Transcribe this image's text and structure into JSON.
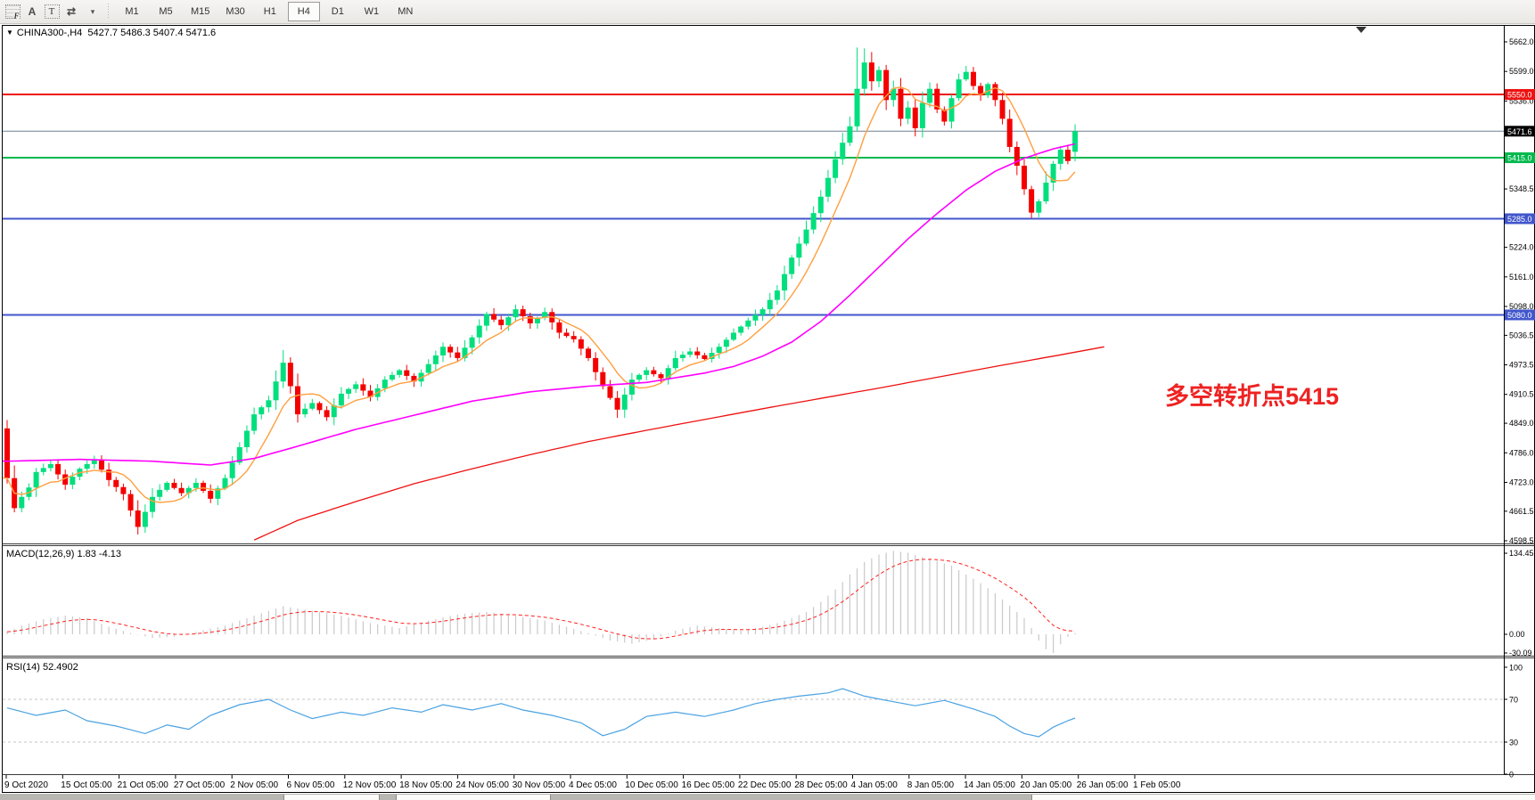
{
  "toolbar": {
    "icons": [
      {
        "name": "grid-f-icon",
        "label": "F"
      },
      {
        "name": "font-icon",
        "label": "A"
      },
      {
        "name": "text-label-icon",
        "label": "T"
      },
      {
        "name": "cycle-charts-icon",
        "label": "⇄"
      },
      {
        "name": "dropdown-caret-icon",
        "label": "▾"
      }
    ],
    "timeframes": [
      {
        "label": "M1",
        "active": false
      },
      {
        "label": "M5",
        "active": false
      },
      {
        "label": "M15",
        "active": false
      },
      {
        "label": "M30",
        "active": false
      },
      {
        "label": "H1",
        "active": false
      },
      {
        "label": "H4",
        "active": true
      },
      {
        "label": "D1",
        "active": false
      },
      {
        "label": "W1",
        "active": false
      },
      {
        "label": "MN",
        "active": false
      }
    ]
  },
  "chart": {
    "dropdown_icon": "▼",
    "symbol_tf": "CHINA300-,H4",
    "ohlc_text": "5427.7 5486.3 5407.4 5471.6",
    "annotation_text": "多空转折点5415"
  },
  "macd_pane": {
    "label": "MACD(12,26,9) 1.83 -4.13"
  },
  "rsi_pane": {
    "label": "RSI(14) 52.4902"
  },
  "chart_data": {
    "type": "candlestick",
    "symbol": "CHINA300-",
    "timeframe": "H4",
    "last_open": 5427.7,
    "last_high": 5486.3,
    "last_low": 5407.4,
    "last_close": 5471.6,
    "price_axis": {
      "max": 5662.0,
      "min": 4598.5
    },
    "y_ticks": [
      5662.0,
      5599.0,
      5536.0,
      5348.5,
      5224.0,
      5161.0,
      5098.0,
      5036.5,
      4973.5,
      4910.5,
      4849.0,
      4786.0,
      4723.0,
      4661.5,
      4598.5
    ],
    "price_lines": [
      {
        "label": "5550.0",
        "price": 5550.0,
        "color": "#ee1111",
        "badge": "#ee1111",
        "width": 2
      },
      {
        "label": "5471.6",
        "price": 5471.6,
        "color": "#708090",
        "badge": "#000000",
        "width": 1
      },
      {
        "label": "5415.0",
        "price": 5415.0,
        "color": "#00b84c",
        "badge": "#00b84c",
        "width": 2
      },
      {
        "label": "5285.0",
        "price": 5285.0,
        "color": "#4156cc",
        "badge": "#4156cc",
        "width": 2
      },
      {
        "label": "5080.0",
        "price": 5080.0,
        "color": "#4156cc",
        "badge": "#4156cc",
        "width": 2
      }
    ],
    "x_labels": [
      "9 Oct 2020",
      "15 Oct 05:00",
      "21 Oct 05:00",
      "27 Oct 05:00",
      "2 Nov 05:00",
      "6 Nov 05:00",
      "12 Nov 05:00",
      "18 Nov 05:00",
      "24 Nov 05:00",
      "30 Nov 05:00",
      "4 Dec 05:00",
      "10 Dec 05:00",
      "16 Dec 05:00",
      "22 Dec 05:00",
      "28 Dec 05:00",
      "4 Jan 05:00",
      "8 Jan 05:00",
      "14 Jan 05:00",
      "20 Jan 05:00",
      "26 Jan 05:00",
      "1 Feb 05:00"
    ],
    "candles": {
      "count": 148,
      "first_open": 4838,
      "up_color": "#00df7d",
      "down_color": "#f40000",
      "close_keyframes": [
        [
          0,
          4732
        ],
        [
          1,
          4668
        ],
        [
          2,
          4692
        ],
        [
          3,
          4712
        ],
        [
          4,
          4745
        ],
        [
          6,
          4762
        ],
        [
          8,
          4718
        ],
        [
          10,
          4752
        ],
        [
          12,
          4772
        ],
        [
          14,
          4728
        ],
        [
          16,
          4698
        ],
        [
          18,
          4628
        ],
        [
          20,
          4692
        ],
        [
          22,
          4722
        ],
        [
          24,
          4700
        ],
        [
          26,
          4722
        ],
        [
          28,
          4688
        ],
        [
          30,
          4732
        ],
        [
          32,
          4798
        ],
        [
          34,
          4868
        ],
        [
          36,
          4898
        ],
        [
          38,
          4978
        ],
        [
          39,
          4928
        ],
        [
          40,
          4868
        ],
        [
          42,
          4892
        ],
        [
          44,
          4862
        ],
        [
          46,
          4912
        ],
        [
          48,
          4932
        ],
        [
          50,
          4905
        ],
        [
          52,
          4942
        ],
        [
          54,
          4962
        ],
        [
          56,
          4938
        ],
        [
          58,
          4975
        ],
        [
          60,
          5012
        ],
        [
          62,
          4988
        ],
        [
          64,
          5032
        ],
        [
          66,
          5082
        ],
        [
          68,
          5058
        ],
        [
          70,
          5092
        ],
        [
          72,
          5062
        ],
        [
          74,
          5086
        ],
        [
          76,
          5042
        ],
        [
          78,
          5028
        ],
        [
          80,
          4988
        ],
        [
          82,
          4928
        ],
        [
          84,
          4878
        ],
        [
          86,
          4942
        ],
        [
          88,
          4962
        ],
        [
          90,
          4945
        ],
        [
          92,
          4988
        ],
        [
          94,
          5002
        ],
        [
          96,
          4986
        ],
        [
          98,
          5012
        ],
        [
          100,
          5042
        ],
        [
          102,
          5068
        ],
        [
          104,
          5092
        ],
        [
          106,
          5132
        ],
        [
          108,
          5202
        ],
        [
          110,
          5262
        ],
        [
          112,
          5332
        ],
        [
          114,
          5412
        ],
        [
          116,
          5482
        ],
        [
          117,
          5562
        ],
        [
          118,
          5618
        ],
        [
          119,
          5578
        ],
        [
          120,
          5602
        ],
        [
          121,
          5538
        ],
        [
          122,
          5562
        ],
        [
          123,
          5498
        ],
        [
          124,
          5522
        ],
        [
          125,
          5478
        ],
        [
          126,
          5532
        ],
        [
          127,
          5562
        ],
        [
          128,
          5518
        ],
        [
          129,
          5492
        ],
        [
          130,
          5542
        ],
        [
          131,
          5582
        ],
        [
          132,
          5598
        ],
        [
          133,
          5568
        ],
        [
          134,
          5548
        ],
        [
          135,
          5572
        ],
        [
          136,
          5538
        ],
        [
          137,
          5498
        ],
        [
          138,
          5438
        ],
        [
          139,
          5398
        ],
        [
          140,
          5348
        ],
        [
          141,
          5298
        ],
        [
          142,
          5322
        ],
        [
          143,
          5362
        ],
        [
          144,
          5402
        ],
        [
          145,
          5432
        ],
        [
          146,
          5408
        ],
        [
          147,
          5471.6
        ]
      ],
      "overrides": {
        "18": {
          "low": 4612
        },
        "38": {
          "high": 5005
        },
        "117": {
          "high": 5650
        },
        "118": {
          "high": 5648
        },
        "141": {
          "low": 5286
        },
        "147": {
          "open": 5427.7,
          "high": 5486.3,
          "low": 5407.4,
          "close": 5471.6
        }
      }
    },
    "ma_fast": {
      "color": "#ff9f40",
      "period": 7
    },
    "ma_mid": {
      "color": "#ff00ff",
      "keyframes": [
        [
          0,
          4768
        ],
        [
          10,
          4772
        ],
        [
          20,
          4768
        ],
        [
          28,
          4760
        ],
        [
          34,
          4774
        ],
        [
          40,
          4800
        ],
        [
          48,
          4836
        ],
        [
          56,
          4866
        ],
        [
          64,
          4896
        ],
        [
          72,
          4916
        ],
        [
          80,
          4928
        ],
        [
          88,
          4936
        ],
        [
          96,
          4956
        ],
        [
          100,
          4970
        ],
        [
          104,
          4992
        ],
        [
          108,
          5022
        ],
        [
          112,
          5066
        ],
        [
          116,
          5122
        ],
        [
          120,
          5182
        ],
        [
          124,
          5242
        ],
        [
          128,
          5296
        ],
        [
          132,
          5346
        ],
        [
          136,
          5386
        ],
        [
          140,
          5414
        ],
        [
          144,
          5434
        ],
        [
          148,
          5448
        ]
      ]
    },
    "ma_slow": {
      "color": "#ee1111",
      "keyframes": [
        [
          34,
          4600
        ],
        [
          40,
          4642
        ],
        [
          48,
          4682
        ],
        [
          56,
          4720
        ],
        [
          64,
          4752
        ],
        [
          72,
          4782
        ],
        [
          80,
          4810
        ],
        [
          88,
          4834
        ],
        [
          96,
          4857
        ],
        [
          104,
          4880
        ],
        [
          112,
          4902
        ],
        [
          120,
          4924
        ],
        [
          128,
          4947
        ],
        [
          136,
          4970
        ],
        [
          144,
          4992
        ],
        [
          151,
          5012
        ]
      ]
    },
    "macd": {
      "value": 1.83,
      "signal": -4.13,
      "axis_labels": [
        {
          "text": "134.45",
          "value": 134.45
        },
        {
          "text": "0.00",
          "value": 0
        },
        {
          "text": "-30.09",
          "value": -30.09
        }
      ],
      "hist_color": "#c9c9c9",
      "signal_color": "#ff2020",
      "keyframes": [
        [
          0,
          4
        ],
        [
          2,
          14
        ],
        [
          5,
          24
        ],
        [
          8,
          30
        ],
        [
          11,
          26
        ],
        [
          14,
          12
        ],
        [
          17,
          2
        ],
        [
          20,
          -6
        ],
        [
          23,
          -4
        ],
        [
          26,
          4
        ],
        [
          30,
          14
        ],
        [
          34,
          30
        ],
        [
          38,
          45
        ],
        [
          42,
          38
        ],
        [
          46,
          30
        ],
        [
          50,
          18
        ],
        [
          54,
          10
        ],
        [
          58,
          22
        ],
        [
          62,
          32
        ],
        [
          66,
          36
        ],
        [
          70,
          30
        ],
        [
          74,
          22
        ],
        [
          77,
          12
        ],
        [
          80,
          2
        ],
        [
          83,
          -10
        ],
        [
          86,
          -15
        ],
        [
          89,
          -8
        ],
        [
          92,
          6
        ],
        [
          95,
          14
        ],
        [
          98,
          10
        ],
        [
          101,
          6
        ],
        [
          104,
          12
        ],
        [
          106,
          18
        ],
        [
          108,
          26
        ],
        [
          110,
          36
        ],
        [
          112,
          52
        ],
        [
          114,
          72
        ],
        [
          116,
          96
        ],
        [
          118,
          116
        ],
        [
          120,
          128
        ],
        [
          122,
          134
        ],
        [
          124,
          131
        ],
        [
          126,
          124
        ],
        [
          128,
          118
        ],
        [
          130,
          110
        ],
        [
          132,
          96
        ],
        [
          134,
          82
        ],
        [
          136,
          66
        ],
        [
          138,
          46
        ],
        [
          140,
          26
        ],
        [
          141,
          10
        ],
        [
          142,
          -10
        ],
        [
          143,
          -24
        ],
        [
          144,
          -30
        ],
        [
          145,
          -16
        ],
        [
          146,
          -4
        ],
        [
          147,
          1.83
        ]
      ]
    },
    "rsi": {
      "value": 52.4902,
      "color": "#4aa2e2",
      "axis_labels": [
        {
          "text": "100",
          "value": 100
        },
        {
          "text": "70",
          "value": 70
        },
        {
          "text": "30",
          "value": 30
        },
        {
          "text": "0",
          "value": 0
        }
      ],
      "dashed_levels": [
        70,
        30
      ],
      "keyframes": [
        [
          0,
          62
        ],
        [
          4,
          55
        ],
        [
          8,
          60
        ],
        [
          11,
          50
        ],
        [
          15,
          45
        ],
        [
          19,
          38
        ],
        [
          22,
          46
        ],
        [
          25,
          42
        ],
        [
          28,
          55
        ],
        [
          32,
          65
        ],
        [
          36,
          70
        ],
        [
          39,
          60
        ],
        [
          42,
          52
        ],
        [
          46,
          58
        ],
        [
          49,
          55
        ],
        [
          53,
          62
        ],
        [
          57,
          58
        ],
        [
          60,
          65
        ],
        [
          64,
          60
        ],
        [
          68,
          66
        ],
        [
          71,
          60
        ],
        [
          75,
          55
        ],
        [
          79,
          48
        ],
        [
          82,
          36
        ],
        [
          85,
          42
        ],
        [
          88,
          54
        ],
        [
          92,
          58
        ],
        [
          96,
          54
        ],
        [
          100,
          60
        ],
        [
          103,
          66
        ],
        [
          106,
          70
        ],
        [
          109,
          73
        ],
        [
          113,
          76
        ],
        [
          115,
          80
        ],
        [
          118,
          73
        ],
        [
          121,
          69
        ],
        [
          125,
          64
        ],
        [
          129,
          69
        ],
        [
          133,
          61
        ],
        [
          136,
          54
        ],
        [
          138,
          45
        ],
        [
          140,
          38
        ],
        [
          142,
          35
        ],
        [
          144,
          44
        ],
        [
          146,
          50
        ],
        [
          147,
          52.49
        ]
      ]
    }
  }
}
